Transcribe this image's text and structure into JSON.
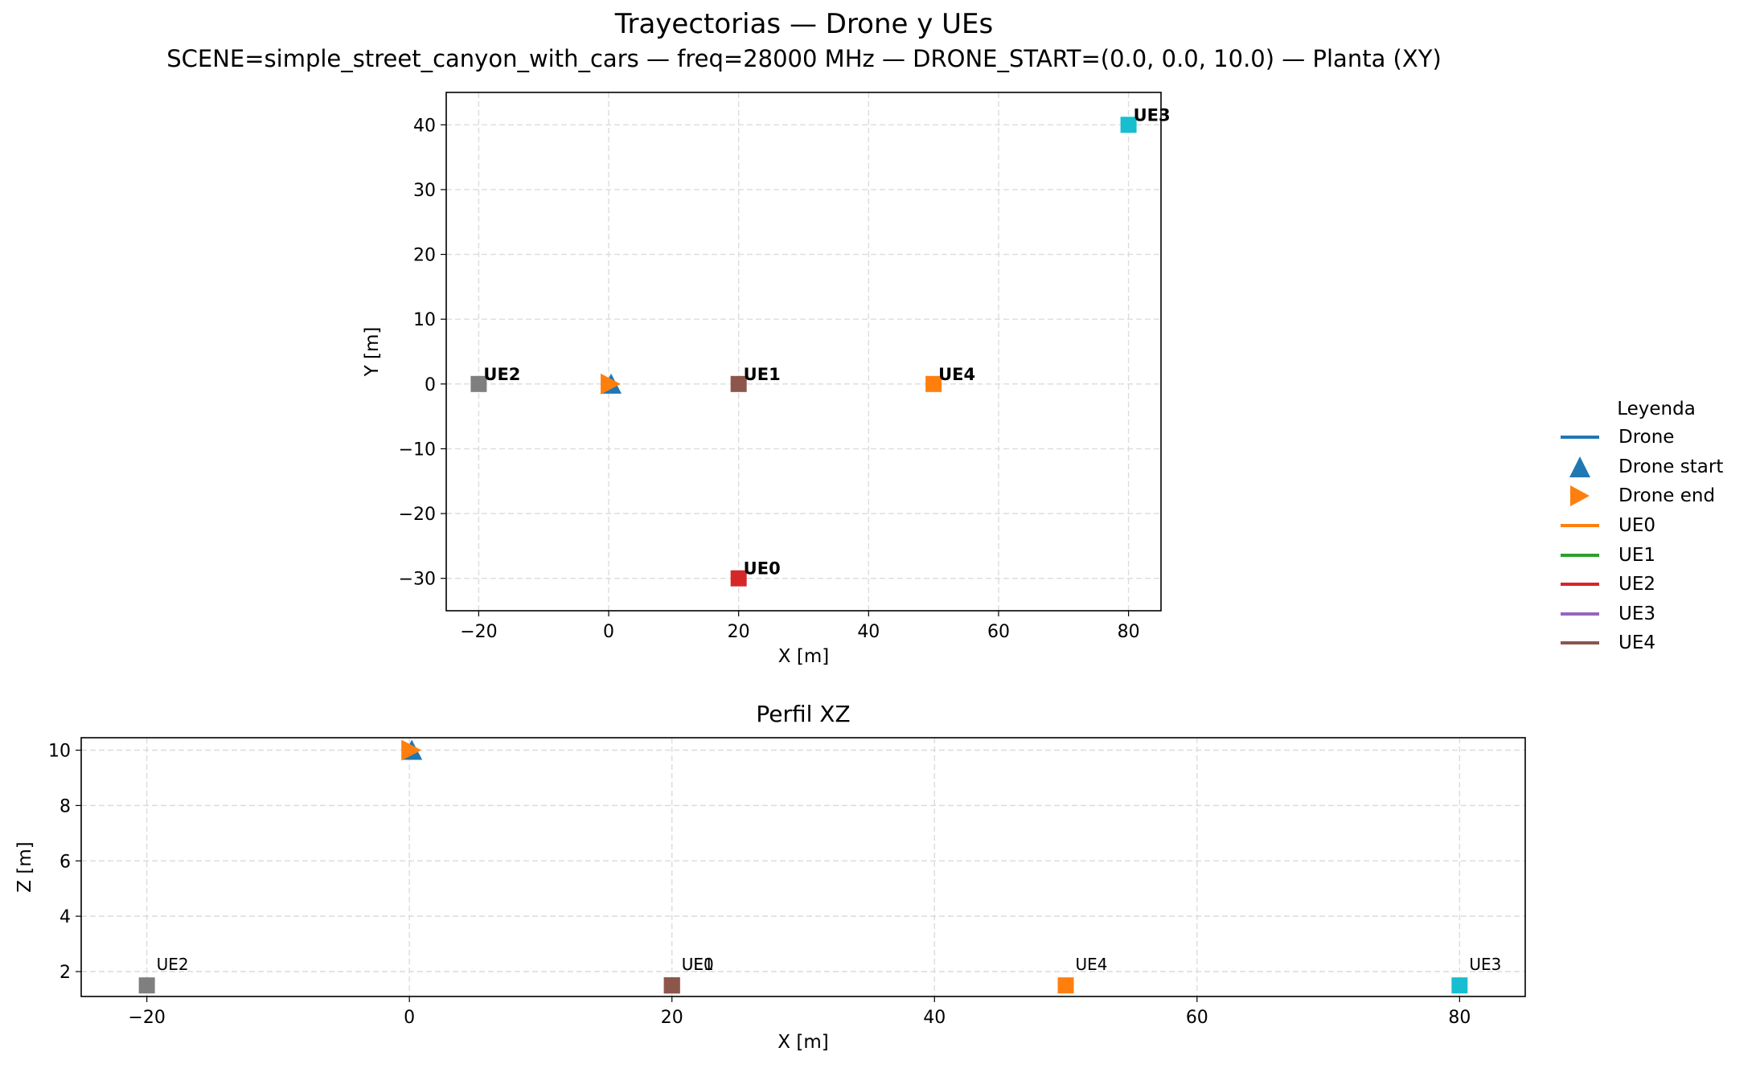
{
  "title": "Trayectorias — Drone y UEs",
  "subtitle": "SCENE=simple_street_canyon_with_cars — freq=28000 MHz — DRONE_START=(0.0, 0.0, 10.0) — Planta (XY)",
  "legend": {
    "title": "Leyenda",
    "items": [
      {
        "label": "Drone",
        "marker": "line",
        "color": "#1f77b4"
      },
      {
        "label": "Drone start",
        "marker": "triangle-up",
        "color": "#1f77b4"
      },
      {
        "label": "Drone end",
        "marker": "triangle-right",
        "color": "#ff7f0e"
      },
      {
        "label": "UE0",
        "marker": "line",
        "color": "#ff7f0e"
      },
      {
        "label": "UE1",
        "marker": "line",
        "color": "#2ca02c"
      },
      {
        "label": "UE2",
        "marker": "line",
        "color": "#d62728"
      },
      {
        "label": "UE3",
        "marker": "line",
        "color": "#9467bd"
      },
      {
        "label": "UE4",
        "marker": "line",
        "color": "#8c564b"
      }
    ]
  },
  "chart_data": [
    {
      "type": "scatter",
      "title": "",
      "xlabel": "X [m]",
      "ylabel": "Y [m]",
      "xlim": [
        -25,
        85
      ],
      "ylim": [
        -35,
        45
      ],
      "xticks": [
        -20,
        0,
        20,
        40,
        60,
        80
      ],
      "yticks": [
        -30,
        -20,
        -10,
        0,
        10,
        20,
        30,
        40
      ],
      "grid": true,
      "drone": {
        "start": [
          0,
          0
        ],
        "end": [
          0,
          0
        ]
      },
      "points": [
        {
          "label": "UE0",
          "x": 20,
          "y": -30,
          "color": "#d62728"
        },
        {
          "label": "UE1",
          "x": 20,
          "y": 0,
          "color": "#8c564b"
        },
        {
          "label": "UE2",
          "x": -20,
          "y": 0,
          "color": "#7f7f7f"
        },
        {
          "label": "UE3",
          "x": 80,
          "y": 40,
          "color": "#17becf"
        },
        {
          "label": "UE4",
          "x": 50,
          "y": 0,
          "color": "#ff7f0e"
        }
      ]
    },
    {
      "type": "scatter",
      "title": "Perfil XZ",
      "xlabel": "X [m]",
      "ylabel": "Z [m]",
      "xlim": [
        -25,
        85
      ],
      "ylim": [
        1.1,
        10.45
      ],
      "xticks": [
        -20,
        0,
        20,
        40,
        60,
        80
      ],
      "yticks": [
        2,
        4,
        6,
        8,
        10
      ],
      "grid": true,
      "drone": {
        "start": [
          0,
          10
        ],
        "end": [
          0,
          10
        ]
      },
      "points": [
        {
          "label": "UE0",
          "x": 20,
          "y": 1.5,
          "color": "#d62728"
        },
        {
          "label": "UE1",
          "x": 20,
          "y": 1.5,
          "color": "#8c564b"
        },
        {
          "label": "UE2",
          "x": -20,
          "y": 1.5,
          "color": "#7f7f7f"
        },
        {
          "label": "UE3",
          "x": 80,
          "y": 1.5,
          "color": "#17becf"
        },
        {
          "label": "UE4",
          "x": 50,
          "y": 1.5,
          "color": "#ff7f0e"
        }
      ]
    }
  ]
}
